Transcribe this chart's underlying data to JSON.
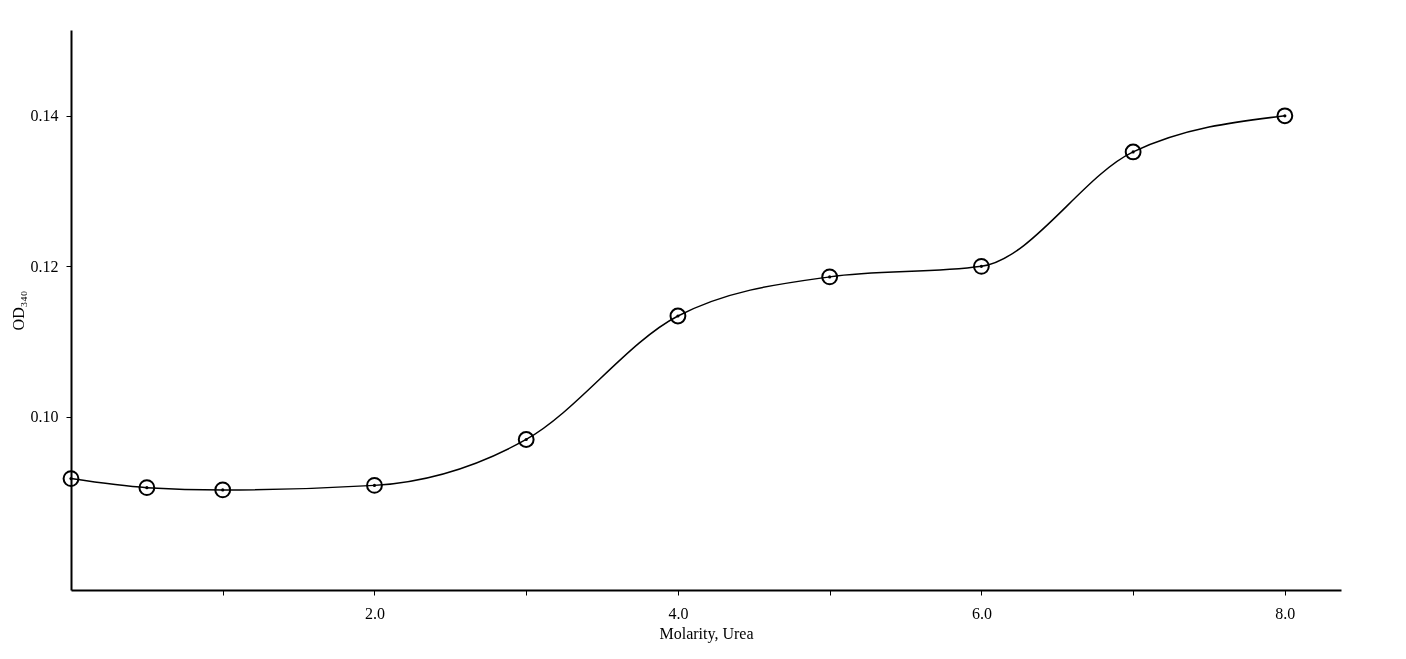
{
  "chart_data": {
    "type": "line",
    "xlabel": "Molarity, Urea",
    "ylabel": "OD₃₄₀",
    "x": [
      0,
      0.5,
      1,
      2,
      3,
      4,
      5,
      6,
      7,
      8
    ],
    "series": [
      {
        "color": "#000000",
        "values": [
          0.0918,
          0.0906,
          0.0903,
          0.0909,
          0.097,
          0.1134,
          0.1186,
          0.12,
          0.1352,
          0.14
        ]
      }
    ],
    "xlim": [
      0,
      8.37
    ],
    "ylim": [
      0.077,
      0.1514
    ],
    "xticks": [
      {
        "value": 1,
        "label": null
      },
      {
        "value": 2,
        "label": "2.0"
      },
      {
        "value": 3,
        "label": null
      },
      {
        "value": 4,
        "label": "4.0"
      },
      {
        "value": 5,
        "label": null
      },
      {
        "value": 6,
        "label": "6.0"
      },
      {
        "value": 7,
        "label": null
      },
      {
        "value": 8,
        "label": "8.0"
      }
    ],
    "yticks": [
      {
        "value": 0.1,
        "label": "0.10"
      },
      {
        "value": 0.12,
        "label": "0.12"
      },
      {
        "value": 0.14,
        "label": "0.14"
      }
    ],
    "marker": "circle",
    "line_style": "solid",
    "grid": false
  }
}
